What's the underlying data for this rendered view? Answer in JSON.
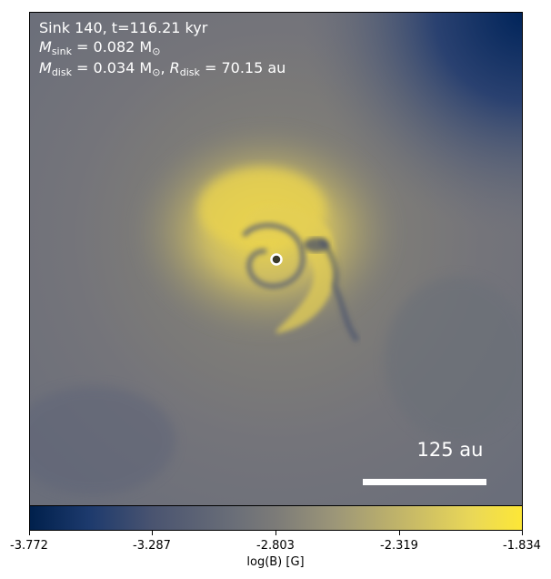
{
  "annotations": {
    "line1": "Sink 140, t=116.21 kyr",
    "m_sink_symbol": "M",
    "m_sink_sub": "sink",
    "m_sink_value": "= 0.082 M",
    "m_sink_unit_sub": "⊙",
    "m_disk_symbol": "M",
    "m_disk_sub": "disk",
    "m_disk_value": "= 0.034 M",
    "m_disk_unit_sub": "⊙",
    "r_disk_symbol": "R",
    "r_disk_sub": "disk",
    "r_disk_value": "= 70.15 au"
  },
  "scale_bar": {
    "label": "125 au"
  },
  "colorbar": {
    "label": "log(B) [G]",
    "ticks": [
      "-3.772",
      "-3.287",
      "-2.803",
      "-2.319",
      "-1.834"
    ],
    "colormap": "cividis"
  },
  "colors": {
    "low": "#00204c",
    "mid": "#7c7b78",
    "high": "#fde737",
    "sink_marker": "#ffffff"
  }
}
